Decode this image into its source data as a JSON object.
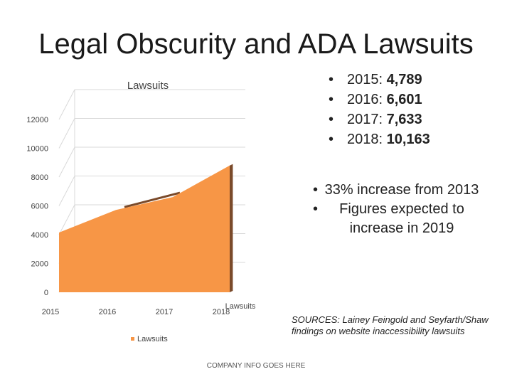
{
  "slide": {
    "title": "Legal Obscurity and ADA Lawsuits",
    "year_stats": [
      {
        "label": "2015: ",
        "value": "4,789"
      },
      {
        "label": "2016: ",
        "value": "6,601"
      },
      {
        "label": "2017: ",
        "value": "7,633"
      },
      {
        "label": "2018: ",
        "value": "10,163"
      }
    ],
    "notes": [
      "33% increase from 2013",
      "Figures expected to increase in 2019"
    ],
    "sources": "SOURCES: Lainey Feingold and Seyfarth/Shaw findings on website inaccessibility lawsuits",
    "footer": "COMPANY INFO GOES HERE"
  },
  "chart_data": {
    "type": "area",
    "title": "Lawsuits",
    "categories": [
      "2015",
      "2016",
      "2017",
      "2018"
    ],
    "series": [
      {
        "name": "Lawsuits",
        "values": [
          4789,
          6601,
          7633,
          10163
        ]
      }
    ],
    "ylim": [
      0,
      12000
    ],
    "yticks": [
      0,
      2000,
      4000,
      6000,
      8000,
      10000,
      12000
    ],
    "grid": true,
    "legend": "bottom",
    "series_axis_label": "Lawsuits",
    "colors": {
      "area": "#f79646",
      "wall": "#7a4a2a",
      "grid": "#d9d9d9"
    }
  }
}
